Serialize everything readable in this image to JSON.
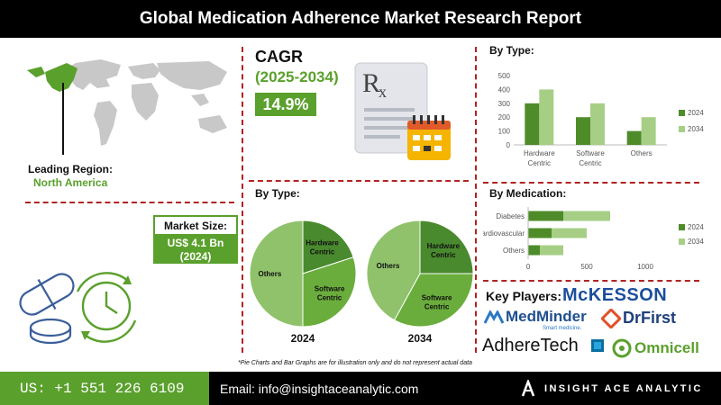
{
  "title": "Global Medication Adherence Market Research Report",
  "left": {
    "leading_region_label": "Leading Region:",
    "leading_region_value": "North America",
    "market_size_label": "Market Size:",
    "market_size_value_line1": "US$ 4.1 Bn",
    "market_size_value_line2": "(2024)"
  },
  "cagr": {
    "label": "CAGR",
    "period": "(2025-2034)",
    "value": "14.9%"
  },
  "pie_section_title": "By Type:",
  "bar_type_title": "By Type:",
  "bar_med_title": "By Medication:",
  "key_players_label": "Key Players:",
  "key_players": {
    "mckesson": "McKESSON",
    "medminder": "MedMinder",
    "medminder_tag": "Smart medicine.",
    "drfirst": "DrFirst",
    "adheretech": "AdhereTech",
    "omnicell": "Omnicell"
  },
  "footnote": "*Pie Charts and Bar Graphs are for illustration only and do not represent actual data",
  "footer": {
    "phone": "US: +1 551 226 6109",
    "email": "Email: info@insightaceanalytic.com",
    "brand": "INSIGHT ACE ANALYTIC"
  },
  "colors": {
    "accent": "#5aa02c",
    "dark_green": "#4e8c2a",
    "light_green": "#a6cf85",
    "pie_dark": "#4a8a2e",
    "pie_mid": "#6aad3d",
    "pie_light": "#8fc26a",
    "title_bg": "#000000",
    "divider": "#b22222"
  },
  "chart_data": [
    {
      "type": "bar",
      "title": "By Type:",
      "categories": [
        "Hardware Centric",
        "Software Centric",
        "Others"
      ],
      "series": [
        {
          "name": "2024",
          "values": [
            300,
            200,
            100
          ]
        },
        {
          "name": "2034",
          "values": [
            400,
            300,
            200
          ]
        }
      ],
      "ylim": [
        0,
        500
      ],
      "yticks": [
        "0",
        "100",
        "200",
        "300",
        "400",
        "500"
      ],
      "legend": "right"
    },
    {
      "type": "bar",
      "orientation": "horizontal",
      "title": "By Medication:",
      "categories": [
        "Diabetes",
        "Cardiovascular",
        "Others"
      ],
      "series": [
        {
          "name": "2024",
          "values": [
            300,
            200,
            100
          ]
        },
        {
          "name": "2034",
          "values": [
            400,
            300,
            200
          ]
        }
      ],
      "xlim": [
        0,
        1000
      ],
      "xticks": [
        "0",
        "500",
        "1000"
      ],
      "stacked": true,
      "legend": "right"
    },
    {
      "type": "pie",
      "title": "2024",
      "slices": [
        {
          "label": "Hardware Centric",
          "value": 20
        },
        {
          "label": "Software Centric",
          "value": 30
        },
        {
          "label": "Others",
          "value": 50
        }
      ]
    },
    {
      "type": "pie",
      "title": "2034",
      "slices": [
        {
          "label": "Hardware Centric",
          "value": 25
        },
        {
          "label": "Software Centric",
          "value": 33
        },
        {
          "label": "Others",
          "value": 42
        }
      ]
    }
  ]
}
